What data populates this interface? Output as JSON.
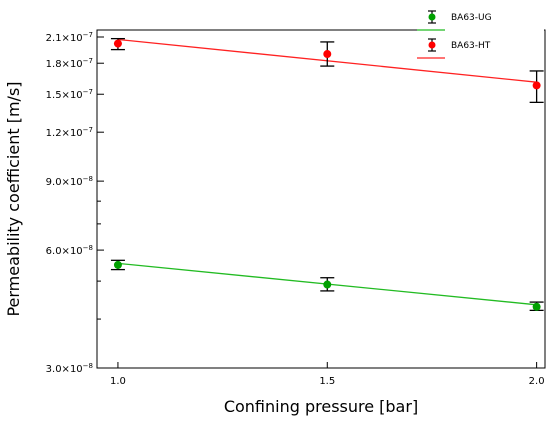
{
  "chart_data": {
    "type": "scatter",
    "xlabel": "Confining pressure [bar]",
    "ylabel": "Permeability coefficient [m/s]",
    "xlim": [
      0.95,
      2.02
    ],
    "ylim": [
      3e-08,
      2.15e-07
    ],
    "y_scale": "log",
    "grid": false,
    "legend_position": "top-right",
    "x_ticks": [
      {
        "value": 1.0,
        "label": "1.0"
      },
      {
        "value": 1.5,
        "label": "1.5"
      },
      {
        "value": 2.0,
        "label": "2.0"
      }
    ],
    "y_ticks": [
      {
        "value": 3e-08,
        "base": "3.0×10",
        "exp": "−8"
      },
      {
        "value": 6e-08,
        "base": "6.0×10",
        "exp": "−8"
      },
      {
        "value": 9e-08,
        "base": "9.0×10",
        "exp": "−8"
      },
      {
        "value": 1.2e-07,
        "base": "1.2×10",
        "exp": "−7"
      },
      {
        "value": 1.5e-07,
        "base": "1.5×10",
        "exp": "−7"
      },
      {
        "value": 1.8e-07,
        "base": "1.8×10",
        "exp": "−7"
      },
      {
        "value": 2.1e-07,
        "base": "2.1×10",
        "exp": "−7"
      }
    ],
    "y_minor_ticks": [
      4e-08,
      5e-08,
      7e-08,
      8e-08
    ],
    "series": [
      {
        "name": "BA63-UG",
        "color": "#00a000",
        "line_color": "#22bb22",
        "x": [
          1.0,
          1.5,
          2.0
        ],
        "values": [
          5.5e-08,
          4.9e-08,
          4.3e-08
        ],
        "err_low": [
          5.35e-08,
          4.72e-08,
          4.21e-08
        ],
        "err_high": [
          5.65e-08,
          5.1e-08,
          4.42e-08
        ],
        "fit": [
          [
            1.0,
            5.55e-08
          ],
          [
            2.0,
            4.35e-08
          ]
        ]
      },
      {
        "name": "BA63-HT",
        "color": "#ff0000",
        "line_color": "#ff2222",
        "x": [
          1.0,
          1.5,
          2.0
        ],
        "values": [
          2.02e-07,
          1.9e-07,
          1.58e-07
        ],
        "err_low": [
          1.95e-07,
          1.77e-07,
          1.43e-07
        ],
        "err_high": [
          2.08e-07,
          2.04e-07,
          1.72e-07
        ],
        "fit": [
          [
            1.0,
            2.07e-07
          ],
          [
            2.0,
            1.61e-07
          ]
        ]
      }
    ]
  }
}
